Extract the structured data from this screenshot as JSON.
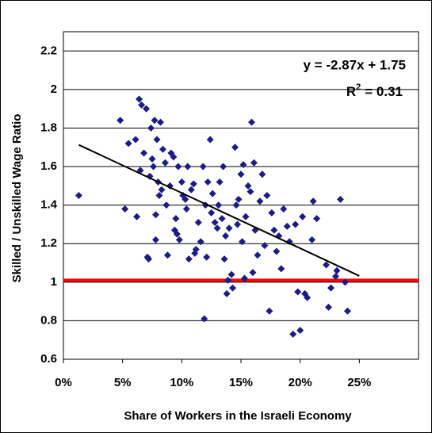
{
  "chart_data": {
    "type": "scatter",
    "x_label": "Share of Workers in the Israeli Economy",
    "y_label": "Skilled / Unskilled Wage Ratio",
    "equation": "y = -2.87x + 1.75",
    "r2_label": "R",
    "r2_exponent": "2",
    "r2_value": "= 0.31",
    "color": "#1c1c84",
    "trendline": {
      "slope": -2.87,
      "intercept": 1.75,
      "x_range": [
        0.013,
        0.25
      ],
      "color": "#000000"
    },
    "reference_line": {
      "value": 1.01,
      "color": "#ff0000"
    },
    "xlim": [
      0,
      0.3
    ],
    "ylim": [
      0.6,
      2.3
    ],
    "xticks": [
      {
        "value": 0,
        "label": "0%"
      },
      {
        "value": 0.05,
        "label": "5%"
      },
      {
        "value": 0.1,
        "label": "10%"
      },
      {
        "value": 0.15,
        "label": "15%"
      },
      {
        "value": 0.2,
        "label": "20%"
      },
      {
        "value": 0.25,
        "label": "25%"
      }
    ],
    "yticks": [
      0.6,
      0.8,
      1,
      1.2,
      1.4,
      1.6,
      1.8,
      2,
      2.2
    ],
    "grid": true,
    "x": [
      0.013,
      0.048,
      0.052,
      0.055,
      0.061,
      0.062,
      0.064,
      0.065,
      0.066,
      0.068,
      0.07,
      0.071,
      0.072,
      0.073,
      0.074,
      0.075,
      0.076,
      0.077,
      0.078,
      0.078,
      0.079,
      0.08,
      0.081,
      0.082,
      0.083,
      0.084,
      0.086,
      0.087,
      0.088,
      0.09,
      0.091,
      0.093,
      0.094,
      0.095,
      0.096,
      0.097,
      0.098,
      0.1,
      0.101,
      0.103,
      0.104,
      0.105,
      0.106,
      0.108,
      0.11,
      0.111,
      0.112,
      0.114,
      0.116,
      0.118,
      0.119,
      0.12,
      0.121,
      0.122,
      0.124,
      0.125,
      0.126,
      0.128,
      0.13,
      0.131,
      0.132,
      0.134,
      0.135,
      0.136,
      0.137,
      0.138,
      0.139,
      0.14,
      0.142,
      0.143,
      0.145,
      0.146,
      0.147,
      0.148,
      0.15,
      0.151,
      0.152,
      0.153,
      0.154,
      0.156,
      0.158,
      0.159,
      0.16,
      0.161,
      0.162,
      0.164,
      0.166,
      0.168,
      0.17,
      0.172,
      0.174,
      0.176,
      0.178,
      0.18,
      0.182,
      0.184,
      0.186,
      0.189,
      0.191,
      0.194,
      0.196,
      0.198,
      0.2,
      0.202,
      0.204,
      0.206,
      0.21,
      0.211,
      0.214,
      0.222,
      0.224,
      0.226,
      0.23,
      0.231,
      0.234,
      0.238,
      0.24
    ],
    "values": [
      1.45,
      1.84,
      1.38,
      1.72,
      1.74,
      1.34,
      1.95,
      1.58,
      1.92,
      1.67,
      1.9,
      1.13,
      1.12,
      1.55,
      1.8,
      1.64,
      1.6,
      1.84,
      1.35,
      1.22,
      1.74,
      1.52,
      1.45,
      1.83,
      1.48,
      1.69,
      1.62,
      1.4,
      1.14,
      1.5,
      1.67,
      1.65,
      1.27,
      1.33,
      1.25,
      1.6,
      1.22,
      1.52,
      1.45,
      1.43,
      1.38,
      1.6,
      1.12,
      1.48,
      1.51,
      1.15,
      1.17,
      1.31,
      1.21,
      1.6,
      0.81,
      1.4,
      1.13,
      1.52,
      1.74,
      1.36,
      1.46,
      1.31,
      1.28,
      1.4,
      1.52,
      1.33,
      1.6,
      1.12,
      1.24,
      0.94,
      1.01,
      1.28,
      1.04,
      0.97,
      1.7,
      1.4,
      1.3,
      1.43,
      1.56,
      1.21,
      1.61,
      1.02,
      1.34,
      1.5,
      1.47,
      1.83,
      1.05,
      1.62,
      1.27,
      1.14,
      1.42,
      1.56,
      1.19,
      1.45,
      0.85,
      1.36,
      1.27,
      1.16,
      1.24,
      1.07,
      1.38,
      1.29,
      1.21,
      0.73,
      1.3,
      0.95,
      0.75,
      1.34,
      0.94,
      0.92,
      1.22,
      1.42,
      1.33,
      1.09,
      0.87,
      0.97,
      1.03,
      1.06,
      1.43,
      1.0,
      0.85
    ]
  }
}
